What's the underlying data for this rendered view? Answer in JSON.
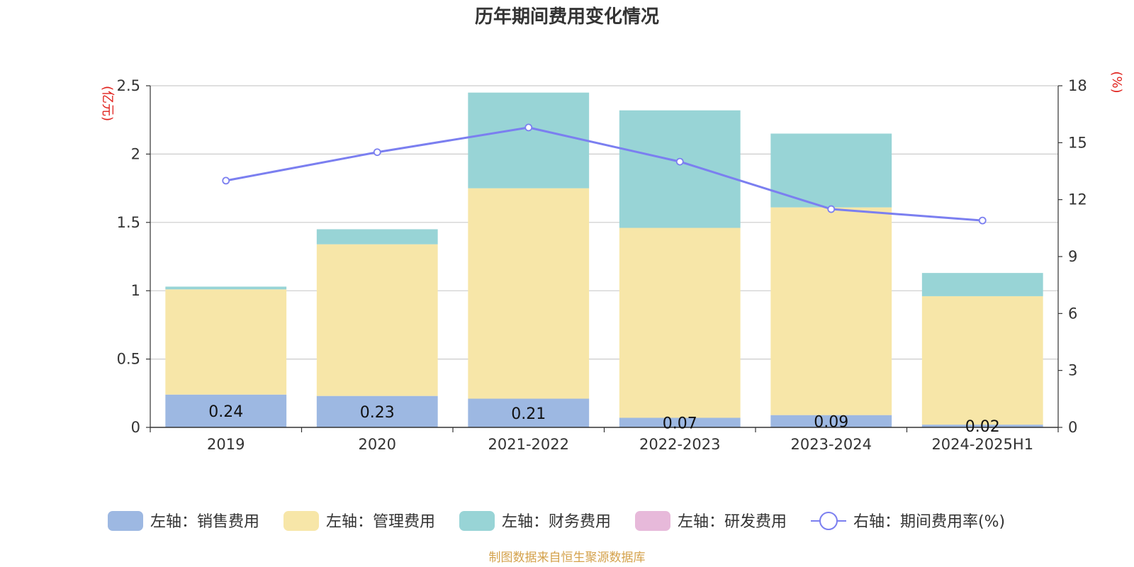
{
  "chart_data": {
    "type": "bar",
    "title": "历年期间费用变化情况",
    "categories": [
      "2019",
      "2020",
      "2021-2022",
      "2022-2023",
      "2023-2024",
      "2024-2025H1"
    ],
    "left_axis": {
      "label": "(亿元)",
      "range": [
        0,
        2.5
      ],
      "ticks": [
        "0",
        "0.5",
        "1",
        "1.5",
        "2",
        "2.5"
      ],
      "tick_values": [
        0,
        0.5,
        1,
        1.5,
        2,
        2.5
      ]
    },
    "right_axis": {
      "label": "(%)",
      "range": [
        0,
        18
      ],
      "ticks": [
        "0",
        "3",
        "6",
        "9",
        "12",
        "15",
        "18"
      ],
      "tick_values": [
        0,
        3,
        6,
        9,
        12,
        15,
        18
      ]
    },
    "series": [
      {
        "name": "左轴：销售费用",
        "kind": "bar",
        "axis": "left",
        "color": "#9db8e2",
        "values": [
          0.24,
          0.23,
          0.21,
          0.07,
          0.09,
          0.02
        ],
        "labels": [
          "0.24",
          "0.23",
          "0.21",
          "0.07",
          "0.09",
          "0.02"
        ]
      },
      {
        "name": "左轴：管理费用",
        "kind": "bar",
        "axis": "left",
        "color": "#f7e6a8",
        "values": [
          0.77,
          1.11,
          1.54,
          1.39,
          1.52,
          0.94
        ]
      },
      {
        "name": "左轴：财务费用",
        "kind": "bar",
        "axis": "left",
        "color": "#98d4d6",
        "values": [
          0.02,
          0.11,
          0.7,
          0.86,
          0.54,
          0.17
        ]
      },
      {
        "name": "左轴：研发费用",
        "kind": "bar",
        "axis": "left",
        "color": "#e7b9da",
        "values": [
          0,
          0,
          0,
          0,
          0,
          0
        ]
      },
      {
        "name": "右轴：期间费用率(%)",
        "kind": "line",
        "axis": "right",
        "color": "#7b7ff0",
        "values": [
          13.0,
          14.5,
          15.8,
          14.0,
          11.5,
          10.9
        ]
      }
    ],
    "grid": true,
    "legend_position": "bottom"
  },
  "source_note": "制图数据来自恒生聚源数据库",
  "colors": {
    "axis_label": "#e0201b",
    "source_note": "#d4a24c",
    "text": "#333333",
    "grid": "#cccccc"
  }
}
